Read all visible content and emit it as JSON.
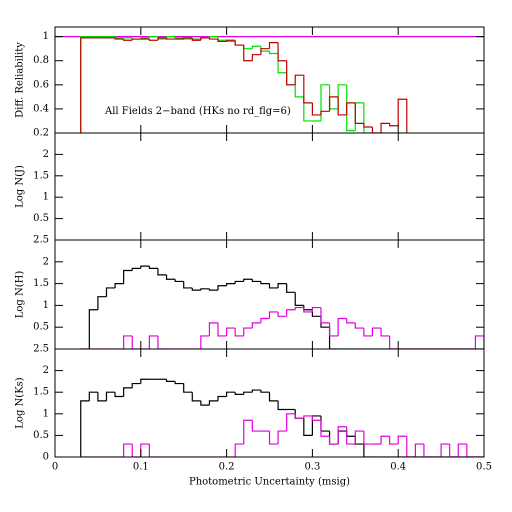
{
  "chart_data": [
    {
      "type": "histogram",
      "ylabel": "Diff. Reliability",
      "annotation": "All Fields 2−band (HKs no rd_flg=6)",
      "xlim": [
        0,
        0.5
      ],
      "ylim": [
        0.2,
        1.08
      ],
      "yticks": [
        0.2,
        0.4,
        0.6,
        0.8,
        1
      ],
      "bins": [
        0.03,
        0.04,
        0.05,
        0.06,
        0.07,
        0.08,
        0.09,
        0.1,
        0.11,
        0.12,
        0.13,
        0.14,
        0.15,
        0.16,
        0.17,
        0.18,
        0.19,
        0.2,
        0.21,
        0.22,
        0.23,
        0.24,
        0.25,
        0.26,
        0.27,
        0.28,
        0.29,
        0.3,
        0.31,
        0.32,
        0.33,
        0.34,
        0.35,
        0.36,
        0.37,
        0.38,
        0.39,
        0.4,
        0.41
      ],
      "series": [
        {
          "name": "magenta",
          "type": "line",
          "color": "#e000e0",
          "x": [
            0,
            0.5
          ],
          "values": [
            1,
            1
          ]
        },
        {
          "name": "green",
          "color": "#00e000",
          "values": [
            1,
            1,
            1,
            1,
            0.99,
            0.99,
            0.98,
            0.99,
            1,
            0.98,
            1,
            0.99,
            0.98,
            0.98,
            0.99,
            1,
            0.97,
            0.96,
            0.93,
            0.9,
            0.92,
            0.88,
            0.86,
            0.7,
            0.6,
            0.5,
            0.3,
            0.3,
            0.6,
            0.4,
            0.6,
            0.22,
            0.45,
            0.2,
            0.2,
            0.2,
            0.2,
            0.2
          ]
        },
        {
          "name": "red",
          "color": "#c00000",
          "values": [
            0.99,
            0.99,
            0.99,
            0.99,
            0.98,
            0.97,
            0.98,
            0.98,
            0.97,
            0.99,
            0.98,
            0.98,
            0.99,
            0.97,
            0.99,
            0.98,
            0.96,
            0.97,
            0.93,
            0.8,
            0.85,
            0.9,
            0.95,
            0.8,
            0.6,
            0.68,
            0.45,
            0.35,
            0.38,
            0.5,
            0.35,
            0.45,
            0.28,
            0.25,
            0.2,
            0.28,
            0.26,
            0.48
          ]
        }
      ]
    },
    {
      "type": "histogram",
      "ylabel": "Log N(J)",
      "xlim": [
        0,
        0.5
      ],
      "ylim": [
        0,
        2.5
      ],
      "yticks": [
        0.5,
        1,
        1.5,
        2
      ],
      "series": []
    },
    {
      "type": "histogram",
      "ylabel": "Log N(H)",
      "xlim": [
        0,
        0.5
      ],
      "ylim": [
        0,
        2.5
      ],
      "yticks": [
        0.5,
        1,
        1.5,
        2,
        2.5
      ],
      "bins": [
        0.03,
        0.04,
        0.05,
        0.06,
        0.07,
        0.08,
        0.09,
        0.1,
        0.11,
        0.12,
        0.13,
        0.14,
        0.15,
        0.16,
        0.17,
        0.18,
        0.19,
        0.2,
        0.21,
        0.22,
        0.23,
        0.24,
        0.25,
        0.26,
        0.27,
        0.28,
        0.29,
        0.3,
        0.31,
        0.32,
        0.33,
        0.34,
        0.35,
        0.36,
        0.37,
        0.38,
        0.39,
        0.4,
        0.41,
        0.42,
        0.43,
        0.44,
        0.45,
        0.46,
        0.47,
        0.48,
        0.49,
        0.5
      ],
      "series": [
        {
          "name": "black",
          "color": "#000000",
          "values": [
            0,
            0.9,
            1.2,
            1.4,
            1.5,
            1.8,
            1.85,
            1.9,
            1.85,
            1.7,
            1.6,
            1.55,
            1.4,
            1.35,
            1.38,
            1.35,
            1.45,
            1.5,
            1.55,
            1.6,
            1.55,
            1.5,
            1.4,
            1.5,
            1.3,
            1.0,
            0.9,
            0.75,
            0.5,
            0,
            0,
            0,
            0,
            0,
            0,
            0,
            0,
            0,
            0,
            0,
            0,
            0,
            0,
            0,
            0,
            0,
            0
          ]
        },
        {
          "name": "magenta",
          "color": "#e000e0",
          "values": [
            0,
            0,
            0,
            0,
            0,
            0.3,
            0,
            0,
            0.3,
            0,
            0,
            0,
            0,
            0,
            0.3,
            0.6,
            0.3,
            0.48,
            0.3,
            0.48,
            0.6,
            0.7,
            0.85,
            0.75,
            0.9,
            0.95,
            0.85,
            0.95,
            0.6,
            0.3,
            0.7,
            0.6,
            0.48,
            0.3,
            0.48,
            0.3,
            0,
            0,
            0,
            0,
            0,
            0,
            0,
            0,
            0,
            0,
            0.3
          ]
        }
      ]
    },
    {
      "type": "histogram",
      "ylabel": "Log N(Ks)",
      "xlabel": "Photometric Uncertainty (msig)",
      "xlim": [
        0,
        0.5
      ],
      "xticks": [
        0,
        0.1,
        0.2,
        0.3,
        0.4,
        0.5
      ],
      "ylim": [
        0,
        2.5
      ],
      "yticks": [
        0,
        0.5,
        1,
        1.5,
        2,
        2.5
      ],
      "bins": [
        0.03,
        0.04,
        0.05,
        0.06,
        0.07,
        0.08,
        0.09,
        0.1,
        0.11,
        0.12,
        0.13,
        0.14,
        0.15,
        0.16,
        0.17,
        0.18,
        0.19,
        0.2,
        0.21,
        0.22,
        0.23,
        0.24,
        0.25,
        0.26,
        0.27,
        0.28,
        0.29,
        0.3,
        0.31,
        0.32,
        0.33,
        0.34,
        0.35,
        0.36,
        0.37,
        0.38,
        0.39,
        0.4,
        0.41,
        0.42,
        0.43,
        0.44,
        0.45,
        0.46,
        0.47,
        0.48,
        0.49,
        0.5
      ],
      "series": [
        {
          "name": "black",
          "color": "#000000",
          "values": [
            1.3,
            1.5,
            1.3,
            1.5,
            1.4,
            1.6,
            1.7,
            1.8,
            1.8,
            1.8,
            1.75,
            1.7,
            1.5,
            1.3,
            1.2,
            1.3,
            1.4,
            1.5,
            1.45,
            1.5,
            1.55,
            1.5,
            1.3,
            1.1,
            1.1,
            0.9,
            0.5,
            0.95,
            0.6,
            0.3,
            0.6,
            0.48,
            0.3,
            0,
            0,
            0,
            0,
            0,
            0,
            0,
            0,
            0,
            0,
            0,
            0,
            0,
            0
          ]
        },
        {
          "name": "magenta",
          "color": "#e000e0",
          "values": [
            0,
            0,
            0,
            0,
            0,
            0.3,
            0,
            0.3,
            0,
            0,
            0,
            0,
            0,
            0,
            0,
            0,
            0,
            0,
            0.3,
            0.85,
            0.6,
            0.6,
            0.3,
            0.6,
            1.0,
            0.9,
            0.95,
            0.85,
            0.48,
            0.3,
            0.7,
            0.3,
            0.6,
            0.3,
            0.3,
            0.48,
            0.3,
            0.48,
            0,
            0.3,
            0,
            0,
            0.3,
            0,
            0.3,
            0,
            0
          ]
        }
      ]
    }
  ]
}
